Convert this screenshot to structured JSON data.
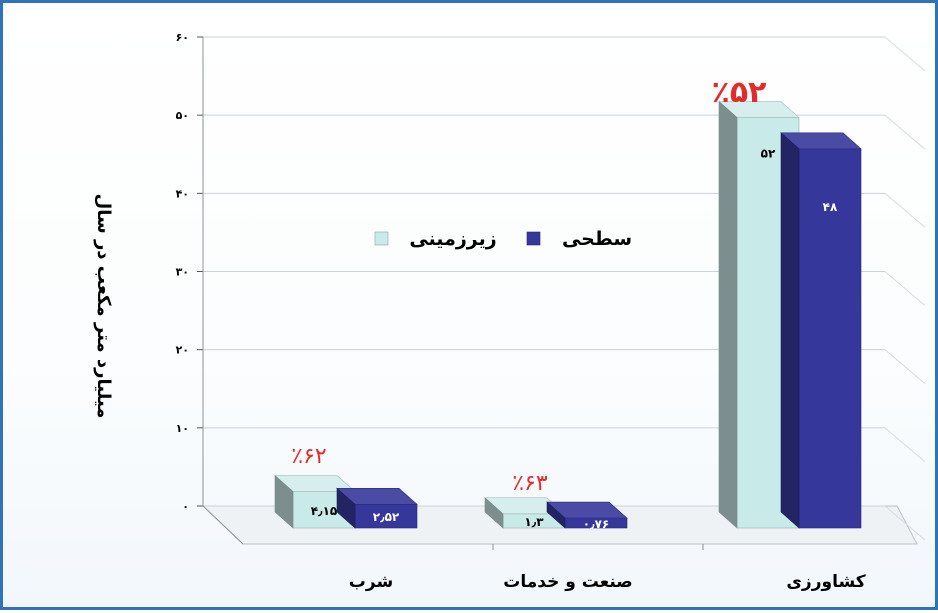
{
  "chart_data": {
    "type": "bar",
    "ylabel": "میلیارد متر مکعب در سال",
    "ylim": [
      0,
      60
    ],
    "yticks": [
      "۰",
      "۱۰",
      "۲۰",
      "۳۰",
      "۴۰",
      "۵۰",
      "۶۰"
    ],
    "ytick_values": [
      0,
      10,
      20,
      30,
      40,
      50,
      60
    ],
    "categories": [
      "شرب",
      "صنعت و خدمات",
      "کشاورزی"
    ],
    "series": [
      {
        "name": "زیرزمینی",
        "color": "#c8eae8",
        "values": [
          4.15,
          1.3,
          52
        ],
        "value_labels": [
          "۴٫۱۵",
          "۱٫۳",
          "۵۲"
        ]
      },
      {
        "name": "سطحی",
        "color": "#35379a",
        "values": [
          2.52,
          0.76,
          48
        ],
        "value_labels": [
          "۲٫۵۲",
          "۰٫۷۶",
          "۴۸"
        ]
      }
    ],
    "percent_labels": [
      "٪۶۲",
      "٪۶۳",
      "٪۵۲"
    ],
    "legend": [
      "زیرزمینی",
      "سطحی"
    ],
    "grid": true,
    "three_d": true
  }
}
